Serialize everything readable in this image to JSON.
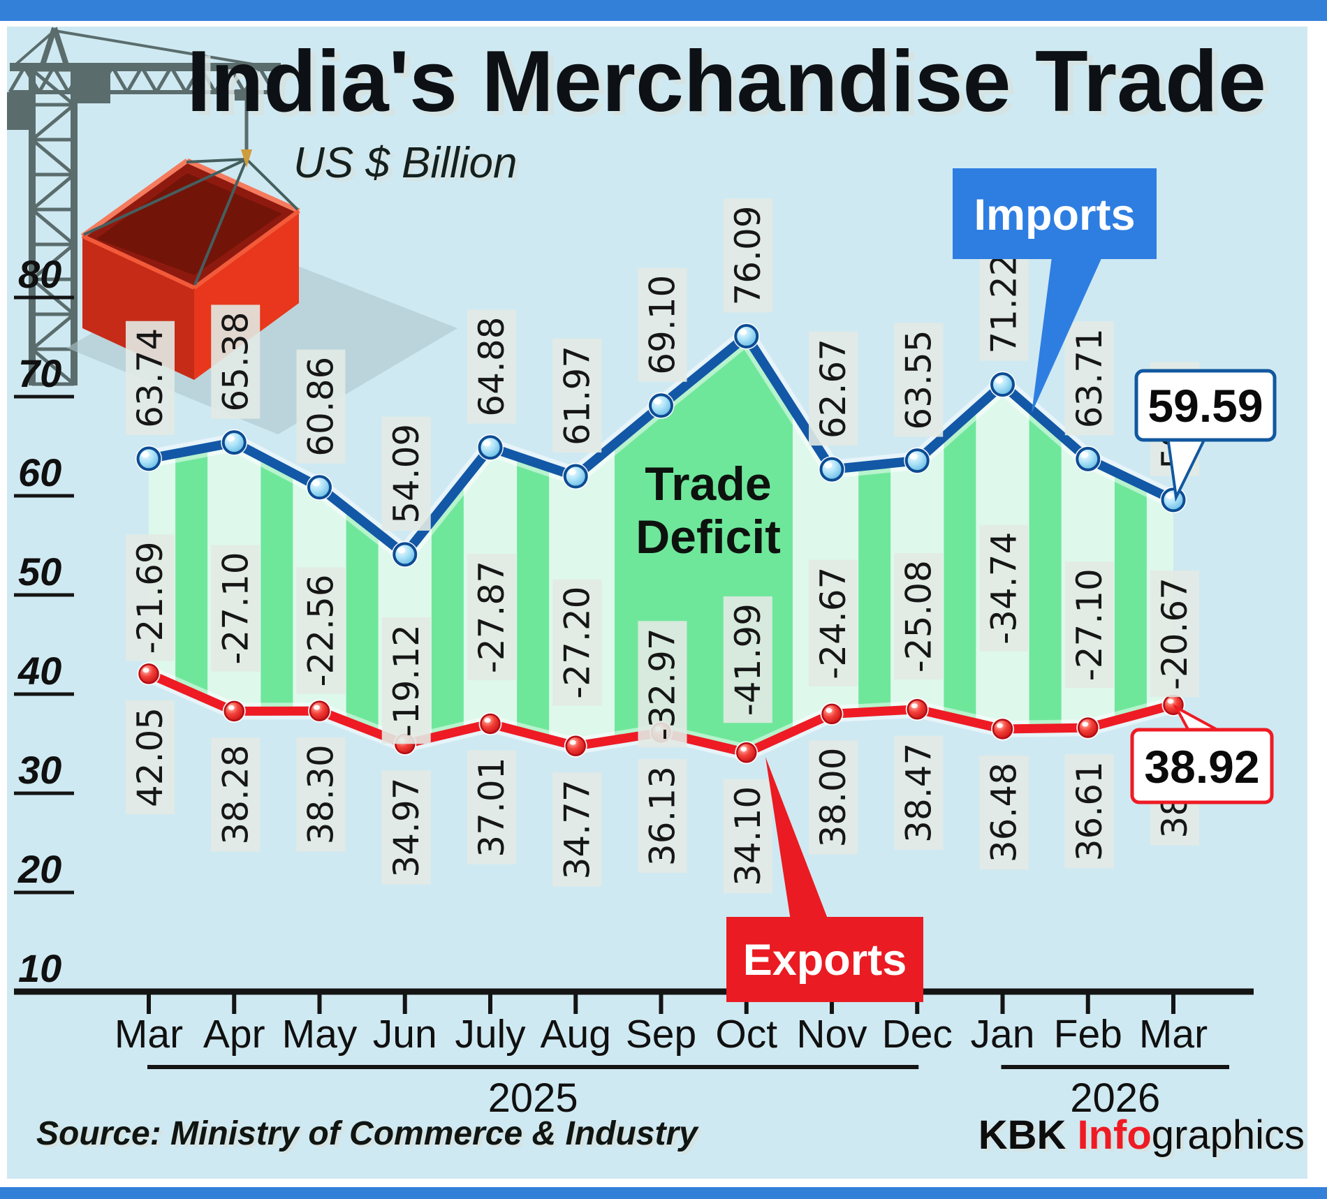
{
  "header": {
    "title": "India's Merchandise Trade",
    "subtitle": "US $ Billion"
  },
  "band_label": {
    "line1": "Trade",
    "line2": "Deficit"
  },
  "callouts": {
    "imports_last": "59.59",
    "exports_last": "38.92"
  },
  "years": [
    {
      "label": "2025",
      "from": 0,
      "to": 9
    },
    {
      "label": "2026",
      "from": 10,
      "to": 12
    }
  ],
  "footer": {
    "source": "Source: Ministry of Commerce & Industry",
    "credit_bold": "KBK ",
    "credit_red": "Info",
    "credit_rest": "graphics"
  },
  "chart_data": {
    "type": "line",
    "title": "India's Merchandise Trade",
    "ylabel": "US $ Billion",
    "x": [
      "Mar",
      "Apr",
      "May",
      "Jun",
      "July",
      "Aug",
      "Sep",
      "Oct",
      "Nov",
      "Dec",
      "Jan",
      "Feb",
      "Mar"
    ],
    "series": [
      {
        "name": "Imports",
        "color": "#1358a6",
        "values": [
          63.74,
          65.38,
          60.86,
          54.09,
          64.88,
          61.97,
          69.1,
          76.09,
          62.67,
          63.55,
          71.22,
          63.71,
          59.59
        ],
        "labels": [
          "63.74",
          "65.38",
          "60.86",
          "54.09",
          "64.88",
          "61.97",
          "69.10",
          "76.09",
          "62.67",
          "63.55",
          "71.22",
          "63.71",
          "59.59"
        ]
      },
      {
        "name": "Exports",
        "color": "#ee1b24",
        "values": [
          42.05,
          38.28,
          38.3,
          34.97,
          37.01,
          34.77,
          36.13,
          34.1,
          38.0,
          38.47,
          36.48,
          36.61,
          38.92
        ],
        "labels": [
          "42.05",
          "38.28",
          "38.30",
          "34.97",
          "37.01",
          "34.77",
          "36.13",
          "34.10",
          "38.00",
          "38.47",
          "36.48",
          "36.61",
          "38.92"
        ]
      }
    ],
    "deficit": {
      "name": "Trade Deficit",
      "values": [
        -21.69,
        -27.1,
        -22.56,
        -19.12,
        -27.87,
        -27.2,
        -32.97,
        -41.99,
        -24.67,
        -25.08,
        -34.74,
        -27.1,
        -20.67
      ],
      "labels": [
        "-21.69",
        "-27.10",
        "-22.56",
        "-19.12",
        "-27.87",
        "-27.20",
        "-32.97",
        "-41.99",
        "-24.67",
        "-25.08",
        "-34.74",
        "-27.10",
        "-20.67"
      ]
    },
    "yticks": [
      "80",
      "70",
      "60",
      "50",
      "40",
      "30",
      "20",
      "10"
    ],
    "ylim": [
      10,
      80
    ],
    "grid": false,
    "legend_position": "callout-boxes"
  },
  "colors": {
    "background": "#cfe9f2",
    "border_bar": "#3380d9",
    "imports_line": "#1358a6",
    "imports_dot_stroke": "#0d4c93",
    "exports_line": "#ee1b24",
    "exports_dot_stroke": "#b30f16",
    "band_fill": "#def8ec",
    "band_stripe": "#6fe79b",
    "label_backing": "#e2eae4",
    "legend_imports_bg": "#2e7ee2",
    "legend_exports_bg": "#ea1b22",
    "callout_border_imports": "#11589f",
    "callout_border_exports": "#ee1b24",
    "crane": "#5a6c6c",
    "container_left": "#c62b17",
    "container_right": "#e8371c",
    "container_opening": "#8e1a0f",
    "shadow": "#aec6cb"
  }
}
